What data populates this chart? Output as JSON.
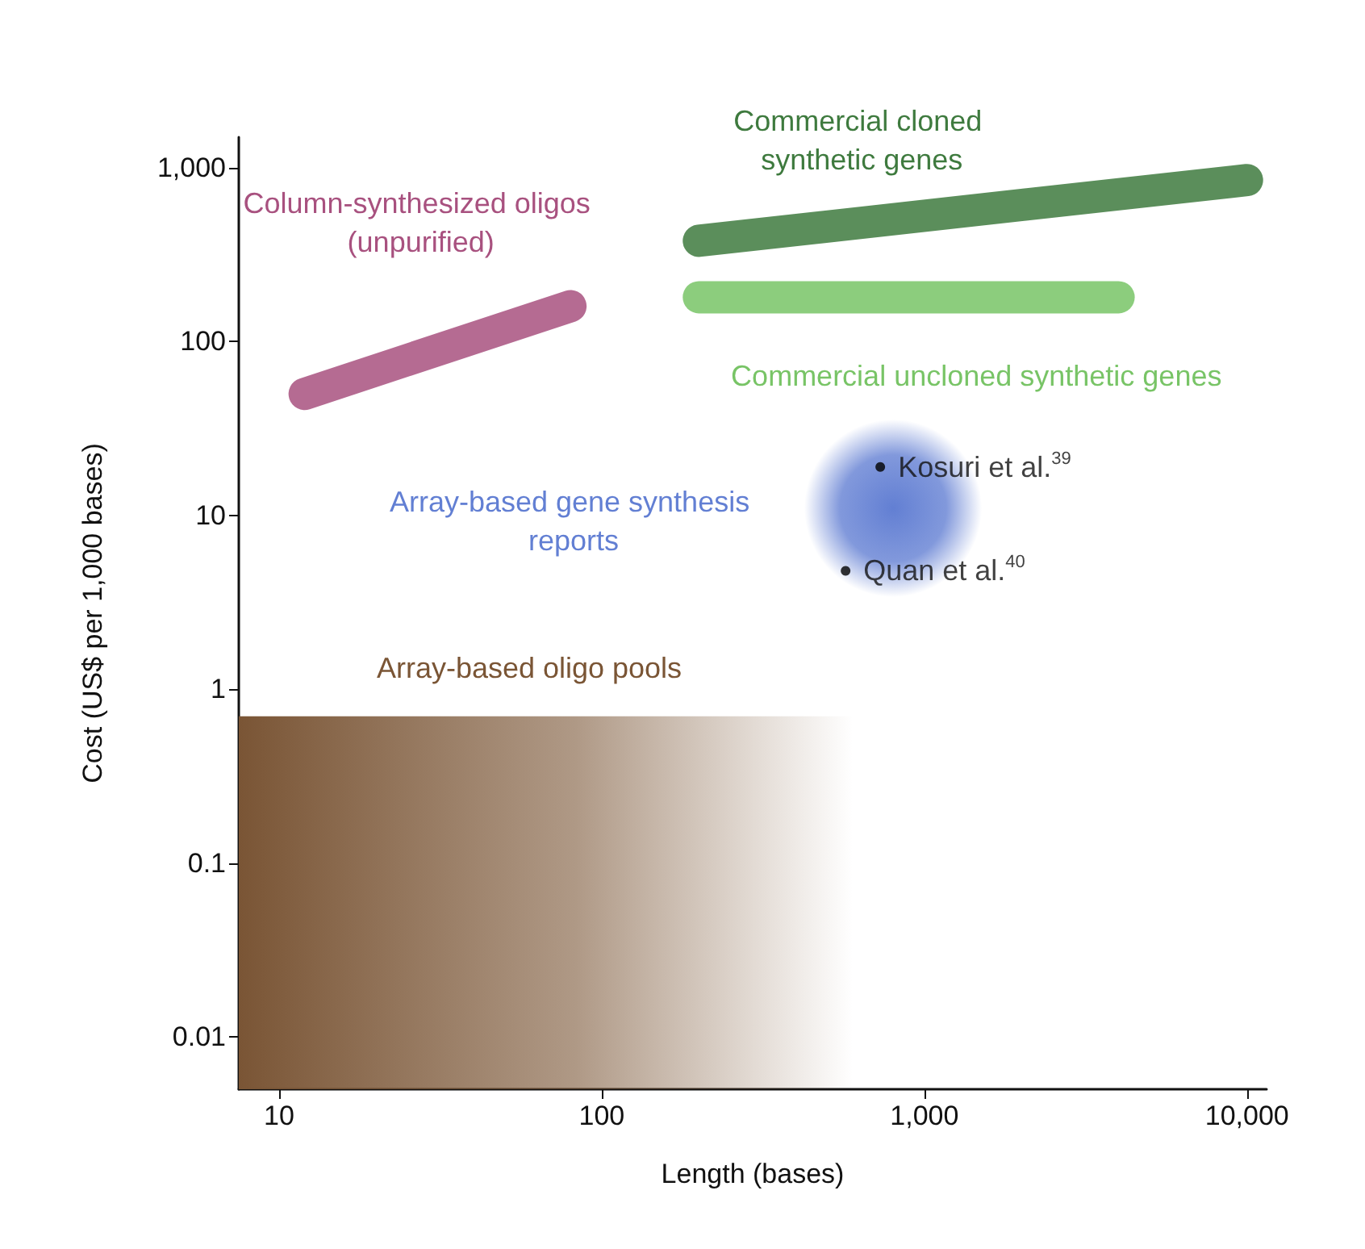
{
  "chart_data": {
    "type": "line",
    "xlabel": "Length (bases)",
    "ylabel": "Cost (US$ per 1,000 bases)",
    "log": "xy",
    "grid": false,
    "legend": false,
    "xlim": [
      7.5,
      11500
    ],
    "xticks": [
      10,
      100,
      {
        "value": 1000,
        "label": "1,000"
      },
      {
        "value": 10000,
        "label": "10,000"
      }
    ],
    "ylim": [
      0.005,
      1500
    ],
    "yticks": [
      0.01,
      0.1,
      1,
      10,
      100,
      {
        "value": 1000,
        "label": "1,000"
      }
    ],
    "series": [
      {
        "name": "Column-synthesized oligos (unpurified)",
        "color": "#a8517f",
        "x": [
          12,
          80
        ],
        "values": [
          50,
          160
        ]
      },
      {
        "name": "Commercial cloned synthetic genes",
        "color": "#3e7a3e",
        "x": [
          200,
          10000
        ],
        "values": [
          380,
          850
        ]
      },
      {
        "name": "Commercial uncloned synthetic genes",
        "color": "#78c466",
        "x": [
          200,
          4000
        ],
        "values": [
          180,
          180
        ]
      },
      {
        "name": "Array-based gene synthesis reports",
        "type": "bubble",
        "color": "#3b5fc8",
        "x": [
          800
        ],
        "values": [
          11
        ],
        "sizes": [
          1
        ]
      },
      {
        "name": "Array-based oligo pools",
        "type": "area",
        "color": "#7a5535",
        "x": [
          7.5,
          600
        ],
        "values": [
          0.7,
          0.7
        ]
      },
      {
        "name": "Kosuri et al.$^{39}$",
        "type": "scatter",
        "color": "#000000",
        "x": [
          730
        ],
        "values": [
          19
        ]
      },
      {
        "name": "Quan et al.$^{40}$",
        "type": "scatter",
        "color": "#000000",
        "x": [
          570
        ],
        "values": [
          4.8
        ]
      }
    ]
  }
}
